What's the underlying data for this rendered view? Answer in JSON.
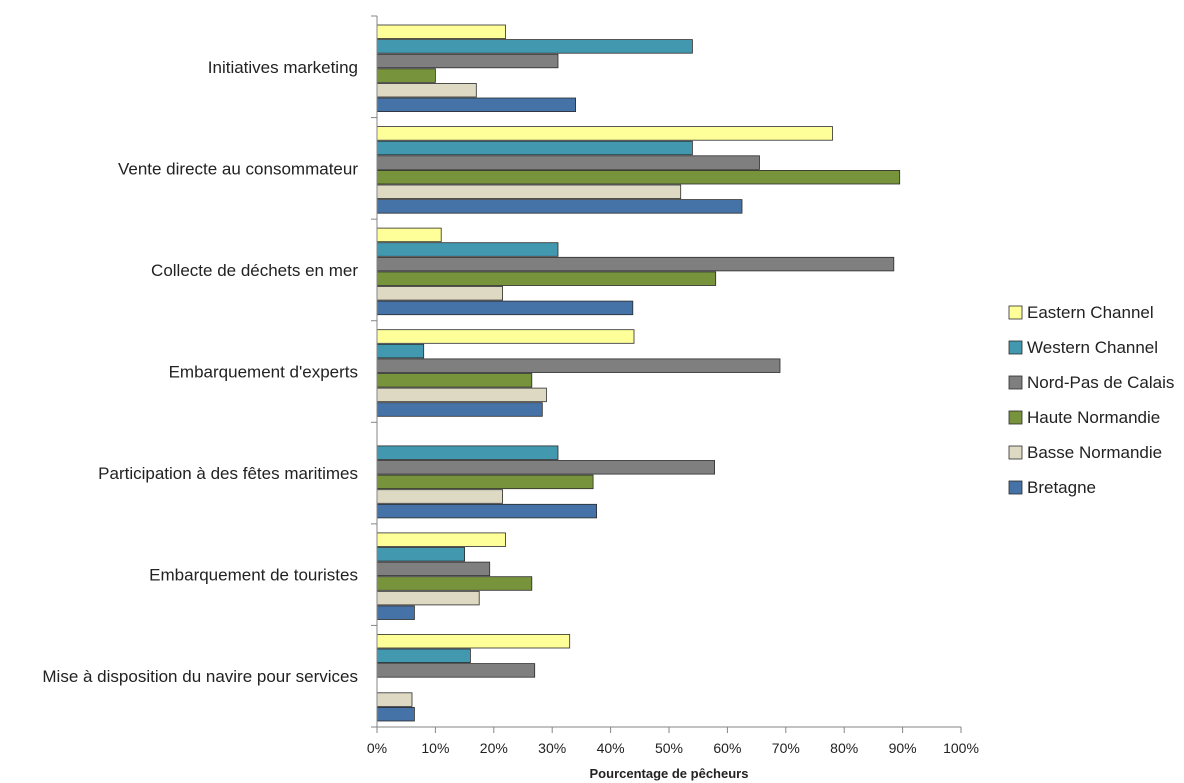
{
  "chart_data": {
    "type": "bar",
    "orientation": "horizontal",
    "categories": [
      "Initiatives marketing",
      "Vente directe au consommateur",
      "Collecte de déchets en mer",
      "Embarquement d'experts",
      "Participation à des fêtes maritimes",
      "Embarquement de touristes",
      "Mise à disposition du navire pour services"
    ],
    "series": [
      {
        "name": "Eastern Channel",
        "color": "#ffff99",
        "values": [
          22,
          78,
          11,
          44,
          0,
          22,
          33
        ]
      },
      {
        "name": "Western Channel",
        "color": "#4198af",
        "values": [
          54,
          54,
          31,
          8,
          31,
          15,
          16
        ]
      },
      {
        "name": "Nord-Pas de Calais",
        "color": "#7f7f7f",
        "values": [
          31,
          65.5,
          88.5,
          69,
          57.8,
          19.3,
          27
        ]
      },
      {
        "name": "Haute Normandie",
        "color": "#77933c",
        "values": [
          10,
          89.5,
          58,
          26.5,
          37,
          26.5,
          0
        ]
      },
      {
        "name": "Basse Normandie",
        "color": "#ddd9c3",
        "values": [
          17,
          52,
          21.5,
          29,
          21.5,
          17.5,
          6
        ]
      },
      {
        "name": "Bretagne",
        "color": "#4572a7",
        "values": [
          34,
          62.5,
          43.8,
          28.3,
          37.6,
          6.4,
          6.4
        ]
      }
    ],
    "xlim": [
      0,
      100
    ],
    "xticks": [
      "0%",
      "10%",
      "20%",
      "30%",
      "40%",
      "50%",
      "60%",
      "70%",
      "80%",
      "90%",
      "100%"
    ],
    "xlabel": "Pourcentage de pêcheurs",
    "ylabel": "",
    "grid": false,
    "legend_position": "right"
  }
}
